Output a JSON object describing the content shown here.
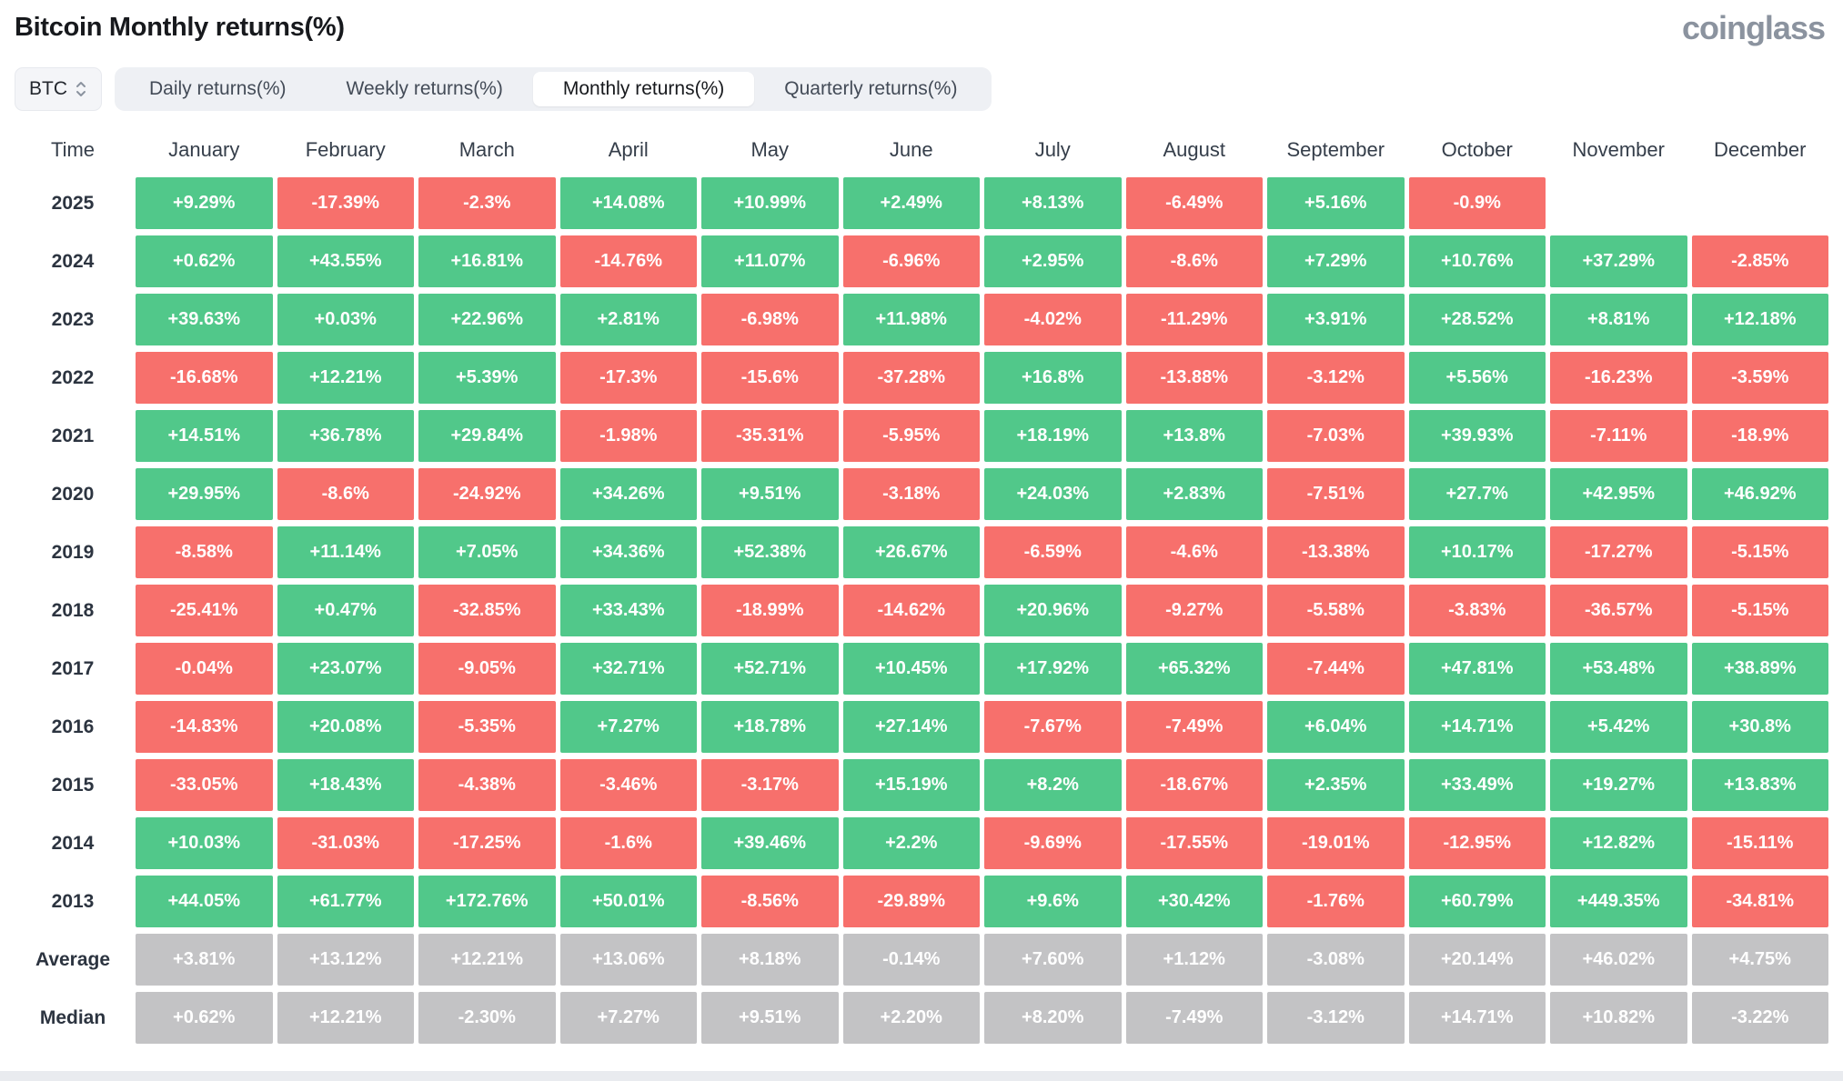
{
  "page": {
    "title": "Bitcoin Monthly returns(%)",
    "brand": "coinglass"
  },
  "controls": {
    "coin_selector": {
      "value": "BTC"
    },
    "tabs": [
      {
        "label": "Daily returns(%)",
        "active": false
      },
      {
        "label": "Weekly returns(%)",
        "active": false
      },
      {
        "label": "Monthly returns(%)",
        "active": true
      },
      {
        "label": "Quarterly returns(%)",
        "active": false
      }
    ]
  },
  "colors": {
    "positive": "#51c88a",
    "negative": "#f7706c",
    "summary": "#c3c3c5",
    "tab_bg": "#eef0f4",
    "active_tab_bg": "#ffffff"
  },
  "table": {
    "time_header": "Time",
    "months": [
      "January",
      "February",
      "March",
      "April",
      "May",
      "June",
      "July",
      "August",
      "September",
      "October",
      "November",
      "December"
    ],
    "rows": [
      {
        "label": "2025",
        "type": "year",
        "values": [
          "+9.29%",
          "-17.39%",
          "-2.3%",
          "+14.08%",
          "+10.99%",
          "+2.49%",
          "+8.13%",
          "-6.49%",
          "+5.16%",
          "-0.9%",
          "",
          ""
        ]
      },
      {
        "label": "2024",
        "type": "year",
        "values": [
          "+0.62%",
          "+43.55%",
          "+16.81%",
          "-14.76%",
          "+11.07%",
          "-6.96%",
          "+2.95%",
          "-8.6%",
          "+7.29%",
          "+10.76%",
          "+37.29%",
          "-2.85%"
        ]
      },
      {
        "label": "2023",
        "type": "year",
        "values": [
          "+39.63%",
          "+0.03%",
          "+22.96%",
          "+2.81%",
          "-6.98%",
          "+11.98%",
          "-4.02%",
          "-11.29%",
          "+3.91%",
          "+28.52%",
          "+8.81%",
          "+12.18%"
        ]
      },
      {
        "label": "2022",
        "type": "year",
        "values": [
          "-16.68%",
          "+12.21%",
          "+5.39%",
          "-17.3%",
          "-15.6%",
          "-37.28%",
          "+16.8%",
          "-13.88%",
          "-3.12%",
          "+5.56%",
          "-16.23%",
          "-3.59%"
        ]
      },
      {
        "label": "2021",
        "type": "year",
        "values": [
          "+14.51%",
          "+36.78%",
          "+29.84%",
          "-1.98%",
          "-35.31%",
          "-5.95%",
          "+18.19%",
          "+13.8%",
          "-7.03%",
          "+39.93%",
          "-7.11%",
          "-18.9%"
        ]
      },
      {
        "label": "2020",
        "type": "year",
        "values": [
          "+29.95%",
          "-8.6%",
          "-24.92%",
          "+34.26%",
          "+9.51%",
          "-3.18%",
          "+24.03%",
          "+2.83%",
          "-7.51%",
          "+27.7%",
          "+42.95%",
          "+46.92%"
        ]
      },
      {
        "label": "2019",
        "type": "year",
        "values": [
          "-8.58%",
          "+11.14%",
          "+7.05%",
          "+34.36%",
          "+52.38%",
          "+26.67%",
          "-6.59%",
          "-4.6%",
          "-13.38%",
          "+10.17%",
          "-17.27%",
          "-5.15%"
        ]
      },
      {
        "label": "2018",
        "type": "year",
        "values": [
          "-25.41%",
          "+0.47%",
          "-32.85%",
          "+33.43%",
          "-18.99%",
          "-14.62%",
          "+20.96%",
          "-9.27%",
          "-5.58%",
          "-3.83%",
          "-36.57%",
          "-5.15%"
        ]
      },
      {
        "label": "2017",
        "type": "year",
        "values": [
          "-0.04%",
          "+23.07%",
          "-9.05%",
          "+32.71%",
          "+52.71%",
          "+10.45%",
          "+17.92%",
          "+65.32%",
          "-7.44%",
          "+47.81%",
          "+53.48%",
          "+38.89%"
        ]
      },
      {
        "label": "2016",
        "type": "year",
        "values": [
          "-14.83%",
          "+20.08%",
          "-5.35%",
          "+7.27%",
          "+18.78%",
          "+27.14%",
          "-7.67%",
          "-7.49%",
          "+6.04%",
          "+14.71%",
          "+5.42%",
          "+30.8%"
        ]
      },
      {
        "label": "2015",
        "type": "year",
        "values": [
          "-33.05%",
          "+18.43%",
          "-4.38%",
          "-3.46%",
          "-3.17%",
          "+15.19%",
          "+8.2%",
          "-18.67%",
          "+2.35%",
          "+33.49%",
          "+19.27%",
          "+13.83%"
        ]
      },
      {
        "label": "2014",
        "type": "year",
        "values": [
          "+10.03%",
          "-31.03%",
          "-17.25%",
          "-1.6%",
          "+39.46%",
          "+2.2%",
          "-9.69%",
          "-17.55%",
          "-19.01%",
          "-12.95%",
          "+12.82%",
          "-15.11%"
        ]
      },
      {
        "label": "2013",
        "type": "year",
        "values": [
          "+44.05%",
          "+61.77%",
          "+172.76%",
          "+50.01%",
          "-8.56%",
          "-29.89%",
          "+9.6%",
          "+30.42%",
          "-1.76%",
          "+60.79%",
          "+449.35%",
          "-34.81%"
        ]
      },
      {
        "label": "Average",
        "type": "summary",
        "values": [
          "+3.81%",
          "+13.12%",
          "+12.21%",
          "+13.06%",
          "+8.18%",
          "-0.14%",
          "+7.60%",
          "+1.12%",
          "-3.08%",
          "+20.14%",
          "+46.02%",
          "+4.75%"
        ]
      },
      {
        "label": "Median",
        "type": "summary",
        "values": [
          "+0.62%",
          "+12.21%",
          "-2.30%",
          "+7.27%",
          "+9.51%",
          "+2.20%",
          "+8.20%",
          "-7.49%",
          "-3.12%",
          "+14.71%",
          "+10.82%",
          "-3.22%"
        ]
      }
    ]
  },
  "chart_data": {
    "type": "heatmap",
    "title": "Bitcoin Monthly returns(%)",
    "unit": "%",
    "legend": {
      "positive_color": "#51c88a",
      "negative_color": "#f7706c",
      "summary_color": "#c3c3c5"
    },
    "columns": [
      "January",
      "February",
      "March",
      "April",
      "May",
      "June",
      "July",
      "August",
      "September",
      "October",
      "November",
      "December"
    ],
    "rows": [
      "2025",
      "2024",
      "2023",
      "2022",
      "2021",
      "2020",
      "2019",
      "2018",
      "2017",
      "2016",
      "2015",
      "2014",
      "2013",
      "Average",
      "Median"
    ],
    "values": [
      [
        9.29,
        -17.39,
        -2.3,
        14.08,
        10.99,
        2.49,
        8.13,
        -6.49,
        5.16,
        -0.9,
        null,
        null
      ],
      [
        0.62,
        43.55,
        16.81,
        -14.76,
        11.07,
        -6.96,
        2.95,
        -8.6,
        7.29,
        10.76,
        37.29,
        -2.85
      ],
      [
        39.63,
        0.03,
        22.96,
        2.81,
        -6.98,
        11.98,
        -4.02,
        -11.29,
        3.91,
        28.52,
        8.81,
        12.18
      ],
      [
        -16.68,
        12.21,
        5.39,
        -17.3,
        -15.6,
        -37.28,
        16.8,
        -13.88,
        -3.12,
        5.56,
        -16.23,
        -3.59
      ],
      [
        14.51,
        36.78,
        29.84,
        -1.98,
        -35.31,
        -5.95,
        18.19,
        13.8,
        -7.03,
        39.93,
        -7.11,
        -18.9
      ],
      [
        29.95,
        -8.6,
        -24.92,
        34.26,
        9.51,
        -3.18,
        24.03,
        2.83,
        -7.51,
        27.7,
        42.95,
        46.92
      ],
      [
        -8.58,
        11.14,
        7.05,
        34.36,
        52.38,
        26.67,
        -6.59,
        -4.6,
        -13.38,
        10.17,
        -17.27,
        -5.15
      ],
      [
        -25.41,
        0.47,
        -32.85,
        33.43,
        -18.99,
        -14.62,
        20.96,
        -9.27,
        -5.58,
        -3.83,
        -36.57,
        -5.15
      ],
      [
        -0.04,
        23.07,
        -9.05,
        32.71,
        52.71,
        10.45,
        17.92,
        65.32,
        -7.44,
        47.81,
        53.48,
        38.89
      ],
      [
        -14.83,
        20.08,
        -5.35,
        7.27,
        18.78,
        27.14,
        -7.67,
        -7.49,
        6.04,
        14.71,
        5.42,
        30.8
      ],
      [
        -33.05,
        18.43,
        -4.38,
        -3.46,
        -3.17,
        15.19,
        8.2,
        -18.67,
        2.35,
        33.49,
        19.27,
        13.83
      ],
      [
        10.03,
        -31.03,
        -17.25,
        -1.6,
        39.46,
        2.2,
        -9.69,
        -17.55,
        -19.01,
        -12.95,
        12.82,
        -15.11
      ],
      [
        44.05,
        61.77,
        172.76,
        50.01,
        -8.56,
        -29.89,
        9.6,
        30.42,
        -1.76,
        60.79,
        449.35,
        -34.81
      ],
      [
        3.81,
        13.12,
        12.21,
        13.06,
        8.18,
        -0.14,
        7.6,
        1.12,
        -3.08,
        20.14,
        46.02,
        4.75
      ],
      [
        0.62,
        12.21,
        -2.3,
        7.27,
        9.51,
        2.2,
        8.2,
        -7.49,
        -3.12,
        14.71,
        10.82,
        -3.22
      ]
    ]
  }
}
